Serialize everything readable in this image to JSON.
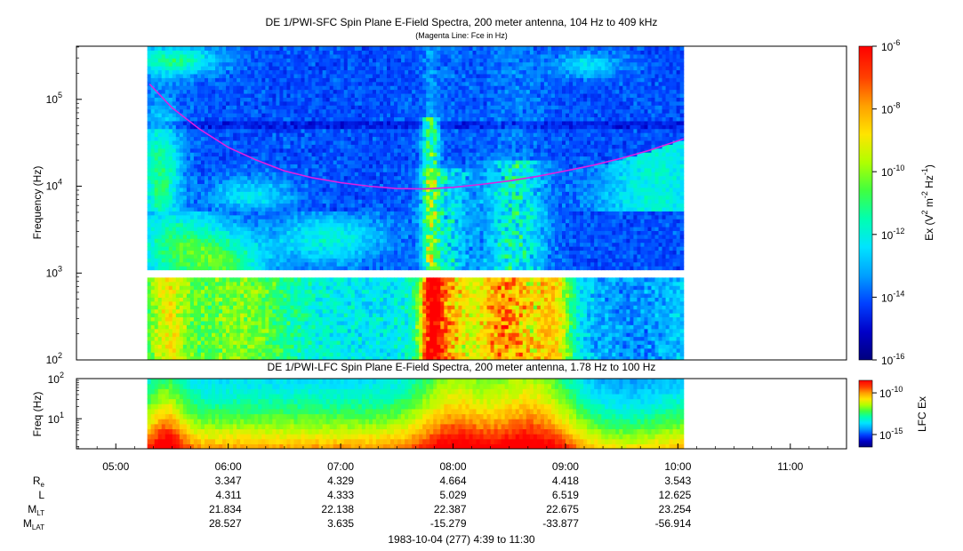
{
  "chart_data": {
    "type": "heatmap",
    "time_axis": {
      "ticks": [
        "05:00",
        "06:00",
        "07:00",
        "08:00",
        "09:00",
        "10:00",
        "11:00"
      ],
      "tick_hours": [
        5,
        6,
        7,
        8,
        9,
        10,
        11
      ],
      "range_hours": [
        4.65,
        11.5
      ],
      "data_start_hours": [
        5.28
      ],
      "data_end_hours": [
        10.05
      ],
      "caption": "1983-10-04 (277) 4:39 to 11:30"
    },
    "sfc_panel": {
      "title": "DE 1/PWI-SFC  Spin Plane E-Field Spectra, 200 meter antenna, 104 Hz to 409 kHz",
      "subtitle": "(Magenta Line: Fce in Hz)",
      "ylabel": "Frequency (Hz)",
      "ylim_hz": [
        100,
        409000
      ],
      "y_ticks": [
        {
          "base": "10",
          "exp": "2"
        },
        {
          "base": "10",
          "exp": "3"
        },
        {
          "base": "10",
          "exp": "4"
        },
        {
          "base": "10",
          "exp": "5"
        }
      ],
      "y_tick_values": [
        100,
        1000,
        10000,
        100000
      ],
      "gap_hz": [
        900,
        1050
      ],
      "scale": "log",
      "fce_line": {
        "name": "Fce",
        "color": "#e020e0",
        "x_hours": [
          5.3,
          5.5,
          5.75,
          6.0,
          6.25,
          6.5,
          6.75,
          7.0,
          7.25,
          7.5,
          7.75,
          8.0,
          8.25,
          8.5,
          8.75,
          9.0,
          9.25,
          9.5,
          9.75,
          10.05
        ],
        "y_hz": [
          150000,
          80000,
          45000,
          28000,
          20000,
          15000,
          12500,
          11000,
          10000,
          9400,
          9300,
          9700,
          10500,
          11500,
          13000,
          15000,
          17500,
          21000,
          26000,
          35000
        ]
      }
    },
    "sfc_colorbar": {
      "label_parts": [
        "Ex (V",
        "2",
        " m",
        "-2",
        " Hz",
        "-1",
        ")"
      ],
      "ticks": [
        {
          "base": "10",
          "exp": "-6"
        },
        {
          "base": "10",
          "exp": "-8"
        },
        {
          "base": "10",
          "exp": "-10"
        },
        {
          "base": "10",
          "exp": "-12"
        },
        {
          "base": "10",
          "exp": "-14"
        },
        {
          "base": "10",
          "exp": "-16"
        }
      ],
      "tick_values": [
        -6,
        -8,
        -10,
        -12,
        -14,
        -16
      ],
      "range_log10": [
        -16,
        -6
      ],
      "colors": [
        "#00007e",
        "#0000c8",
        "#0040ff",
        "#00a0ff",
        "#00e4ff",
        "#00ffb0",
        "#40ff40",
        "#b0ff00",
        "#ffe400",
        "#ffa000",
        "#ff4000",
        "#ff0000"
      ]
    },
    "lfc_panel": {
      "title": "DE 1/PWI-LFC  Spin Plane E-Field Spectra, 200 meter antenna, 1.78 Hz to 100 Hz",
      "ylabel": "Freq (Hz)",
      "ylim_hz": [
        1.78,
        100
      ],
      "y_ticks": [
        {
          "base": "10",
          "exp": "1"
        },
        {
          "base": "10",
          "exp": "2"
        }
      ],
      "y_tick_values": [
        10,
        100
      ],
      "scale": "log"
    },
    "lfc_colorbar": {
      "label": "LFC Ex",
      "ticks": [
        {
          "base": "10",
          "exp": "-10"
        },
        {
          "base": "10",
          "exp": "-15"
        }
      ],
      "tick_values": [
        -10,
        -15
      ],
      "range_log10": [
        -16.5,
        -8.5
      ]
    },
    "ephemeris": {
      "rows": [
        {
          "label": "R",
          "sub": "e",
          "values": [
            "3.347",
            "4.329",
            "4.664",
            "4.418",
            "3.543"
          ]
        },
        {
          "label": "L",
          "sub": "",
          "values": [
            "4.311",
            "4.333",
            "5.029",
            "6.519",
            "12.625"
          ]
        },
        {
          "label": "M",
          "sub": "LT",
          "values": [
            "21.834",
            "22.138",
            "22.387",
            "22.675",
            "23.254"
          ]
        },
        {
          "label": "M",
          "sub": "LAT",
          "values": [
            "28.527",
            "3.635",
            "-15.279",
            "-33.877",
            "-56.914"
          ]
        }
      ],
      "value_hours": [
        6,
        7,
        8,
        9,
        10
      ]
    }
  }
}
